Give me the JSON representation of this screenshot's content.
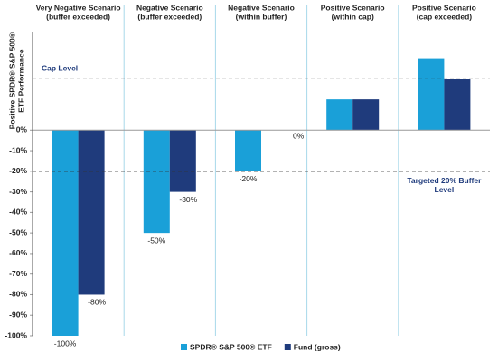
{
  "chart_data": {
    "type": "bar",
    "y_label": [
      "Positive SPDR® S&P 500®",
      "ETF Performance"
    ],
    "categories": [
      [
        "Very Negative Scenario",
        "(buffer exceeded)"
      ],
      [
        "Negative Scenario",
        "(buffer exceeded)"
      ],
      [
        "Negative Scenario",
        "(within buffer)"
      ],
      [
        "Positive Scenario",
        "(within cap)"
      ],
      [
        "Positive Scenario",
        "(cap exceeded)"
      ]
    ],
    "series": [
      {
        "name": "SPDR® S&P 500® ETF",
        "color": "#1aa0d8",
        "values": [
          -100,
          -50,
          -20,
          15,
          35
        ],
        "value_labels": [
          "-100%",
          "-50%",
          "-20%",
          null,
          null
        ]
      },
      {
        "name": "Fund (gross)",
        "color": "#1f3b7c",
        "values": [
          -80,
          -30,
          0,
          15,
          25
        ],
        "value_labels": [
          "-80%",
          "-30%",
          "0%",
          null,
          null
        ]
      }
    ],
    "ylim": [
      -100,
      48
    ],
    "yticks": [
      {
        "value": 0,
        "label": "0%"
      },
      {
        "value": -10,
        "label": "-10%"
      },
      {
        "value": -20,
        "label": "-20%"
      },
      {
        "value": -30,
        "label": "-30%"
      },
      {
        "value": -40,
        "label": "-40%"
      },
      {
        "value": -50,
        "label": "-50%"
      },
      {
        "value": -60,
        "label": "-60%"
      },
      {
        "value": -70,
        "label": "-70%"
      },
      {
        "value": -80,
        "label": "-80%"
      },
      {
        "value": -90,
        "label": "-90%"
      },
      {
        "value": -100,
        "label": "-100%"
      }
    ],
    "annotations": [
      {
        "text": [
          "Cap Level"
        ],
        "y": 25
      },
      {
        "text": [
          "Targeted 20% Buffer",
          "Level"
        ],
        "y": -20
      }
    ]
  }
}
